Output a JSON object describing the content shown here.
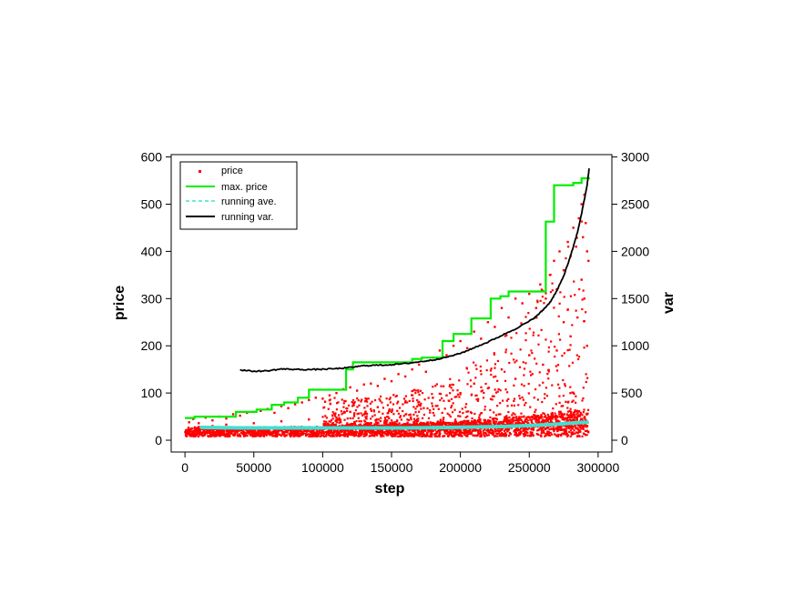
{
  "chart_data": {
    "type": "scatter",
    "title": "",
    "xlabel": "step",
    "ylabel_left": "price",
    "ylabel_right": "var",
    "xlim": [
      -10000,
      310000
    ],
    "ylim_left": [
      -25,
      605
    ],
    "ylim_right": [
      -125,
      3025
    ],
    "x_ticks": [
      0,
      50000,
      100000,
      150000,
      200000,
      250000,
      300000
    ],
    "x_tick_labels": [
      "0",
      "50000",
      "100000",
      "150000",
      "200000",
      "250000",
      "300000"
    ],
    "y_left_ticks": [
      0,
      100,
      200,
      300,
      400,
      500,
      600
    ],
    "y_left_tick_labels": [
      "0",
      "100",
      "200",
      "300",
      "400",
      "500",
      "600"
    ],
    "y_right_ticks": [
      0,
      500,
      1000,
      1500,
      2000,
      2500,
      3000
    ],
    "y_right_tick_labels": [
      "0",
      "500",
      "1000",
      "1500",
      "2000",
      "2500",
      "3000"
    ],
    "grid": false,
    "legend_position": "top-left",
    "legend": [
      {
        "label": "price",
        "color": "#ff0000",
        "style": "points"
      },
      {
        "label": "max. price",
        "color": "#00ee00",
        "style": "line"
      },
      {
        "label": "running ave.",
        "color": "#40e0d0",
        "style": "dashed"
      },
      {
        "label": "running var.",
        "color": "#000000",
        "style": "line"
      }
    ],
    "series": [
      {
        "label": "price",
        "color": "#ff0000",
        "axis": "left",
        "points": [
          [
            3000,
            38
          ],
          [
            6000,
            45
          ],
          [
            10000,
            36
          ],
          [
            15000,
            48
          ],
          [
            20000,
            42
          ],
          [
            25000,
            50
          ],
          [
            30000,
            46
          ],
          [
            35000,
            55
          ],
          [
            40000,
            52
          ],
          [
            45000,
            58
          ],
          [
            50000,
            60
          ],
          [
            55000,
            62
          ],
          [
            60000,
            66
          ],
          [
            65000,
            58
          ],
          [
            70000,
            72
          ],
          [
            75000,
            68
          ],
          [
            80000,
            76
          ],
          [
            85000,
            80
          ],
          [
            90000,
            85
          ],
          [
            95000,
            90
          ],
          [
            100000,
            88
          ],
          [
            105000,
            95
          ],
          [
            110000,
            100
          ],
          [
            115000,
            108
          ],
          [
            120000,
            112
          ],
          [
            125000,
            105
          ],
          [
            130000,
            118
          ],
          [
            135000,
            120
          ],
          [
            140000,
            115
          ],
          [
            145000,
            130
          ],
          [
            150000,
            125
          ],
          [
            155000,
            140
          ],
          [
            160000,
            135
          ],
          [
            165000,
            150
          ],
          [
            170000,
            160
          ],
          [
            175000,
            145
          ],
          [
            180000,
            175
          ],
          [
            185000,
            190
          ],
          [
            190000,
            180
          ],
          [
            195000,
            200
          ],
          [
            200000,
            210
          ],
          [
            205000,
            195
          ],
          [
            210000,
            230
          ],
          [
            215000,
            215
          ],
          [
            220000,
            250
          ],
          [
            225000,
            240
          ],
          [
            230000,
            280
          ],
          [
            235000,
            260
          ],
          [
            240000,
            300
          ],
          [
            245000,
            290
          ],
          [
            250000,
            310
          ],
          [
            255000,
            280
          ],
          [
            258000,
            330
          ],
          [
            262000,
            300
          ],
          [
            265000,
            350
          ],
          [
            268000,
            380
          ],
          [
            270000,
            320
          ],
          [
            272000,
            400
          ],
          [
            275000,
            360
          ],
          [
            278000,
            420
          ],
          [
            280000,
            390
          ],
          [
            282000,
            450
          ],
          [
            284000,
            410
          ],
          [
            286000,
            470
          ],
          [
            288000,
            500
          ],
          [
            289000,
            430
          ],
          [
            290000,
            520
          ],
          [
            291000,
            460
          ],
          [
            292000,
            400
          ],
          [
            293000,
            380
          ],
          [
            120000,
            60
          ],
          [
            140000,
            70
          ],
          [
            160000,
            80
          ],
          [
            180000,
            90
          ],
          [
            200000,
            100
          ],
          [
            220000,
            110
          ],
          [
            240000,
            130
          ],
          [
            260000,
            160
          ],
          [
            270000,
            190
          ],
          [
            280000,
            220
          ],
          [
            285000,
            260
          ],
          [
            290000,
            300
          ],
          [
            288000,
            340
          ],
          [
            292000,
            200
          ],
          [
            275000,
            250
          ],
          [
            250000,
            180
          ],
          [
            230000,
            150
          ],
          [
            210000,
            120
          ],
          [
            190000,
            95
          ],
          [
            170000,
            75
          ],
          [
            150000,
            60
          ],
          [
            130000,
            55
          ],
          [
            110000,
            48
          ],
          [
            90000,
            44
          ],
          [
            70000,
            40
          ],
          [
            50000,
            36
          ],
          [
            30000,
            33
          ],
          [
            20000,
            30
          ],
          [
            10000,
            28
          ],
          [
            5000,
            25
          ]
        ]
      },
      {
        "label": "max. price",
        "color": "#00ee00",
        "axis": "left",
        "steps": [
          [
            0,
            47
          ],
          [
            7000,
            47
          ],
          [
            7000,
            50
          ],
          [
            37000,
            50
          ],
          [
            37000,
            60
          ],
          [
            52000,
            60
          ],
          [
            52000,
            65
          ],
          [
            63000,
            65
          ],
          [
            63000,
            75
          ],
          [
            72000,
            75
          ],
          [
            72000,
            80
          ],
          [
            82000,
            80
          ],
          [
            82000,
            90
          ],
          [
            90000,
            90
          ],
          [
            90000,
            107
          ],
          [
            117000,
            107
          ],
          [
            117000,
            150
          ],
          [
            122000,
            150
          ],
          [
            122000,
            165
          ],
          [
            165000,
            165
          ],
          [
            165000,
            172
          ],
          [
            172000,
            172
          ],
          [
            172000,
            175
          ],
          [
            187000,
            175
          ],
          [
            187000,
            210
          ],
          [
            195000,
            210
          ],
          [
            195000,
            225
          ],
          [
            208000,
            225
          ],
          [
            208000,
            258
          ],
          [
            222000,
            258
          ],
          [
            222000,
            300
          ],
          [
            229000,
            300
          ],
          [
            229000,
            305
          ],
          [
            235000,
            305
          ],
          [
            235000,
            315
          ],
          [
            262000,
            315
          ],
          [
            262000,
            463
          ],
          [
            268000,
            463
          ],
          [
            268000,
            540
          ],
          [
            282000,
            540
          ],
          [
            282000,
            545
          ],
          [
            288000,
            545
          ],
          [
            288000,
            555
          ],
          [
            294000,
            555
          ]
        ]
      },
      {
        "label": "running ave.",
        "color": "#40e0d0",
        "axis": "left",
        "points": [
          [
            12000,
            27
          ],
          [
            40000,
            26
          ],
          [
            70000,
            26
          ],
          [
            100000,
            26
          ],
          [
            130000,
            26
          ],
          [
            160000,
            26
          ],
          [
            190000,
            27
          ],
          [
            210000,
            28
          ],
          [
            230000,
            29
          ],
          [
            250000,
            31
          ],
          [
            265000,
            33
          ],
          [
            275000,
            35
          ],
          [
            285000,
            37
          ],
          [
            292000,
            38
          ]
        ]
      },
      {
        "label": "running var.",
        "color": "#000000",
        "axis": "right",
        "points": [
          [
            40000,
            745
          ],
          [
            50000,
            730
          ],
          [
            60000,
            735
          ],
          [
            70000,
            755
          ],
          [
            80000,
            750
          ],
          [
            90000,
            748
          ],
          [
            100000,
            752
          ],
          [
            110000,
            758
          ],
          [
            120000,
            770
          ],
          [
            130000,
            790
          ],
          [
            140000,
            795
          ],
          [
            150000,
            800
          ],
          [
            160000,
            812
          ],
          [
            170000,
            830
          ],
          [
            180000,
            850
          ],
          [
            190000,
            880
          ],
          [
            200000,
            920
          ],
          [
            210000,
            980
          ],
          [
            220000,
            1040
          ],
          [
            230000,
            1110
          ],
          [
            240000,
            1180
          ],
          [
            250000,
            1260
          ],
          [
            255000,
            1310
          ],
          [
            260000,
            1380
          ],
          [
            265000,
            1460
          ],
          [
            270000,
            1580
          ],
          [
            275000,
            1740
          ],
          [
            280000,
            1950
          ],
          [
            285000,
            2200
          ],
          [
            288000,
            2400
          ],
          [
            290000,
            2550
          ],
          [
            292000,
            2700
          ],
          [
            293500,
            2880
          ]
        ]
      }
    ]
  }
}
